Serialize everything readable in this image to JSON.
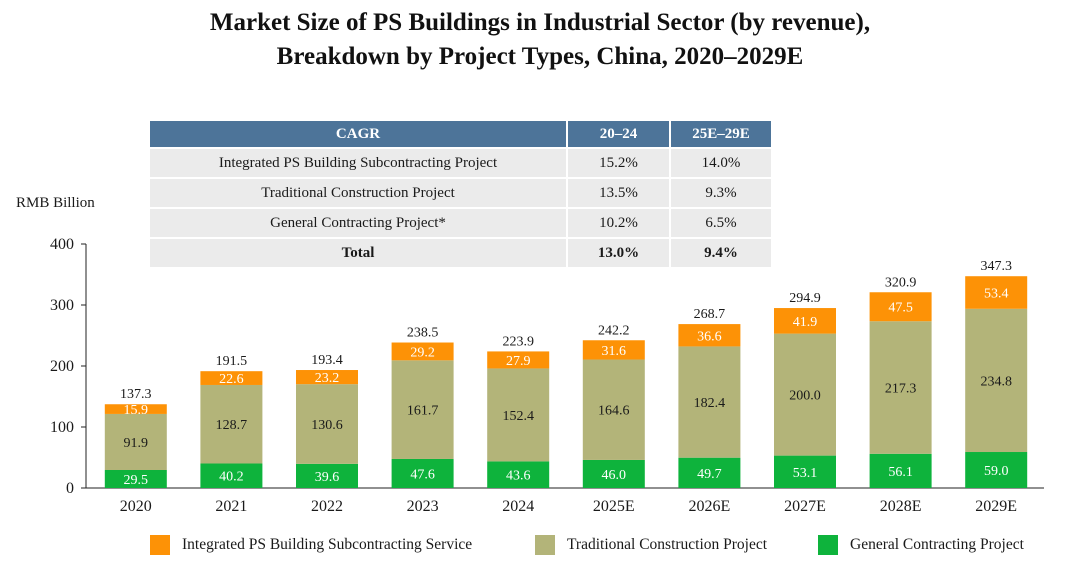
{
  "title_line1": "Market Size of PS Buildings in Industrial Sector (by revenue),",
  "title_line2": "Breakdown by Project Types, China, 2020–2029E",
  "cagr_table": {
    "headers": [
      "CAGR",
      "20–24",
      "25E–29E"
    ],
    "rows": [
      {
        "label": "Integrated PS Building Subcontracting Project",
        "v1": "15.2%",
        "v2": "14.0%"
      },
      {
        "label": "Traditional Construction Project",
        "v1": "13.5%",
        "v2": "9.3%"
      },
      {
        "label": "General Contracting Project*",
        "v1": "10.2%",
        "v2": "6.5%"
      },
      {
        "label": "Total",
        "v1": "13.0%",
        "v2": "9.4%"
      }
    ]
  },
  "chart_data": {
    "type": "bar",
    "stacked": true,
    "title": "Market Size of PS Buildings in Industrial Sector (by revenue), Breakdown by Project Types, China, 2020–2029E",
    "ylabel": "RMB Billion",
    "xlabel": "",
    "ylim": [
      0,
      400
    ],
    "yticks": [
      0,
      100,
      200,
      300,
      400
    ],
    "categories": [
      "2020",
      "2021",
      "2022",
      "2023",
      "2024",
      "2025E",
      "2026E",
      "2027E",
      "2028E",
      "2029E"
    ],
    "series": [
      {
        "name": "General Contracting Project",
        "color": "#0eb33c",
        "label_color": "#ffffff",
        "values": [
          29.5,
          40.2,
          39.6,
          47.6,
          43.6,
          46.0,
          49.7,
          53.1,
          56.1,
          59.0
        ]
      },
      {
        "name": "Traditional Construction Project",
        "color": "#b3b479",
        "label_color": "#1a1a1a",
        "values": [
          91.9,
          128.7,
          130.6,
          161.7,
          152.4,
          164.6,
          182.4,
          200.0,
          217.3,
          234.8
        ]
      },
      {
        "name": "Integrated PS Building Subcontracting Service",
        "color": "#fd9206",
        "label_color": "#ffffff",
        "values": [
          15.9,
          22.6,
          23.2,
          29.2,
          27.9,
          31.6,
          36.6,
          41.9,
          47.5,
          53.4
        ]
      }
    ],
    "totals": [
      137.3,
      191.5,
      193.4,
      238.5,
      223.9,
      242.2,
      268.7,
      294.9,
      320.9,
      347.3
    ],
    "legend": [
      "Integrated PS Building Subcontracting Service",
      "Traditional Construction Project",
      "General Contracting Project"
    ],
    "legend_position": "bottom"
  }
}
